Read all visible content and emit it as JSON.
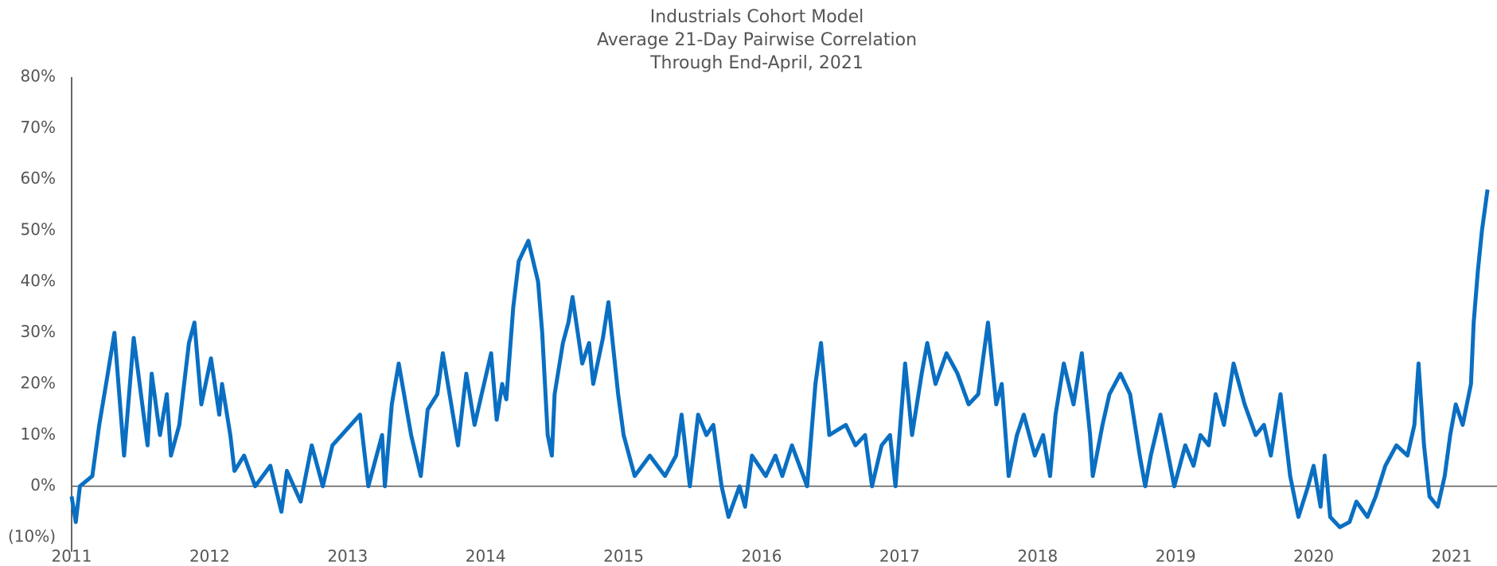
{
  "chart_data": {
    "type": "line",
    "title": [
      "Industrials Cohort Model",
      "Average 21-Day Pairwise Correlation",
      "Through End-April, 2021"
    ],
    "color": "#0a6fc2",
    "x": [
      2011.0,
      2011.03,
      2011.06,
      2011.15,
      2011.2,
      2011.25,
      2011.31,
      2011.38,
      2011.45,
      2011.55,
      2011.58,
      2011.64,
      2011.69,
      2011.72,
      2011.78,
      2011.85,
      2011.89,
      2011.94,
      2012.01,
      2012.07,
      2012.09,
      2012.15,
      2012.18,
      2012.25,
      2012.33,
      2012.44,
      2012.52,
      2012.56,
      2012.66,
      2012.74,
      2012.82,
      2012.89,
      2013.09,
      2013.15,
      2013.25,
      2013.27,
      2013.32,
      2013.37,
      2013.46,
      2013.53,
      2013.58,
      2013.65,
      2013.69,
      2013.8,
      2013.86,
      2013.92,
      2014.04,
      2014.08,
      2014.12,
      2014.15,
      2014.2,
      2014.24,
      2014.31,
      2014.38,
      2014.41,
      2014.45,
      2014.48,
      2014.5,
      2014.56,
      2014.6,
      2014.63,
      2014.7,
      2014.75,
      2014.78,
      2014.85,
      2014.89,
      2014.96,
      2015.0,
      2015.08,
      2015.19,
      2015.3,
      2015.38,
      2015.42,
      2015.48,
      2015.54,
      2015.6,
      2015.65,
      2015.71,
      2015.76,
      2015.84,
      2015.88,
      2015.93,
      2016.03,
      2016.1,
      2016.15,
      2016.22,
      2016.33,
      2016.39,
      2016.43,
      2016.49,
      2016.61,
      2016.68,
      2016.75,
      2016.8,
      2016.87,
      2016.93,
      2016.97,
      2017.04,
      2017.09,
      2017.16,
      2017.2,
      2017.26,
      2017.34,
      2017.42,
      2017.5,
      2017.57,
      2017.64,
      2017.7,
      2017.74,
      2017.79,
      2017.85,
      2017.9,
      2017.98,
      2018.04,
      2018.09,
      2018.13,
      2018.19,
      2018.26,
      2018.32,
      2018.38,
      2018.4,
      2018.47,
      2018.52,
      2018.6,
      2018.67,
      2018.74,
      2018.78,
      2018.82,
      2018.89,
      2018.99,
      2019.07,
      2019.13,
      2019.18,
      2019.24,
      2019.29,
      2019.35,
      2019.42,
      2019.5,
      2019.58,
      2019.64,
      2019.69,
      2019.76,
      2019.83,
      2019.89,
      2019.96,
      2020.0,
      2020.05,
      2020.08,
      2020.12,
      2020.19,
      2020.26,
      2020.31,
      2020.39,
      2020.45,
      2020.52,
      2020.6,
      2020.68,
      2020.73,
      2020.76,
      2020.8,
      2020.84,
      2020.9,
      2020.95,
      2020.99,
      2021.03,
      2021.08,
      2021.14,
      2021.16,
      2021.19,
      2021.22,
      2021.26
    ],
    "values": [
      -2,
      -7,
      0,
      2,
      12,
      20,
      30,
      6,
      29,
      8,
      22,
      10,
      18,
      6,
      12,
      28,
      32,
      16,
      25,
      14,
      20,
      10,
      3,
      6,
      0,
      4,
      -5,
      3,
      -3,
      8,
      0,
      8,
      14,
      0,
      10,
      0,
      16,
      24,
      10,
      2,
      15,
      18,
      26,
      8,
      22,
      12,
      26,
      13,
      20,
      17,
      35,
      44,
      48,
      40,
      30,
      10,
      6,
      18,
      28,
      32,
      37,
      24,
      28,
      20,
      29,
      36,
      18,
      10,
      2,
      6,
      2,
      6,
      14,
      0,
      14,
      10,
      12,
      0,
      -6,
      0,
      -4,
      6,
      2,
      6,
      2,
      8,
      0,
      20,
      28,
      10,
      12,
      8,
      10,
      0,
      8,
      10,
      0,
      24,
      10,
      22,
      28,
      20,
      26,
      22,
      16,
      18,
      32,
      16,
      20,
      2,
      10,
      14,
      6,
      10,
      2,
      14,
      24,
      16,
      26,
      10,
      2,
      12,
      18,
      22,
      18,
      6,
      0,
      6,
      14,
      0,
      8,
      4,
      10,
      8,
      18,
      12,
      24,
      16,
      10,
      12,
      6,
      18,
      2,
      -6,
      0,
      4,
      -4,
      6,
      -6,
      -8,
      -7,
      -3,
      -6,
      -2,
      4,
      8,
      6,
      12,
      24,
      8,
      -2,
      -4,
      2,
      10,
      16,
      12,
      20,
      32,
      42,
      50,
      58
    ],
    "xlim": [
      2011,
      2021.3
    ],
    "xticks": [
      2011,
      2012,
      2013,
      2014,
      2015,
      2016,
      2017,
      2018,
      2019,
      2020,
      2021
    ],
    "ylim": [
      -10,
      80
    ],
    "yticks": [
      {
        "value": -10,
        "label": "(10%)"
      },
      {
        "value": 0,
        "label": "0%"
      },
      {
        "value": 10,
        "label": "10%"
      },
      {
        "value": 20,
        "label": "20%"
      },
      {
        "value": 30,
        "label": "30%"
      },
      {
        "value": 40,
        "label": "40%"
      },
      {
        "value": 50,
        "label": "50%"
      },
      {
        "value": 60,
        "label": "60%"
      },
      {
        "value": 70,
        "label": "70%"
      },
      {
        "value": 80,
        "label": "80%"
      }
    ],
    "grid": false
  }
}
